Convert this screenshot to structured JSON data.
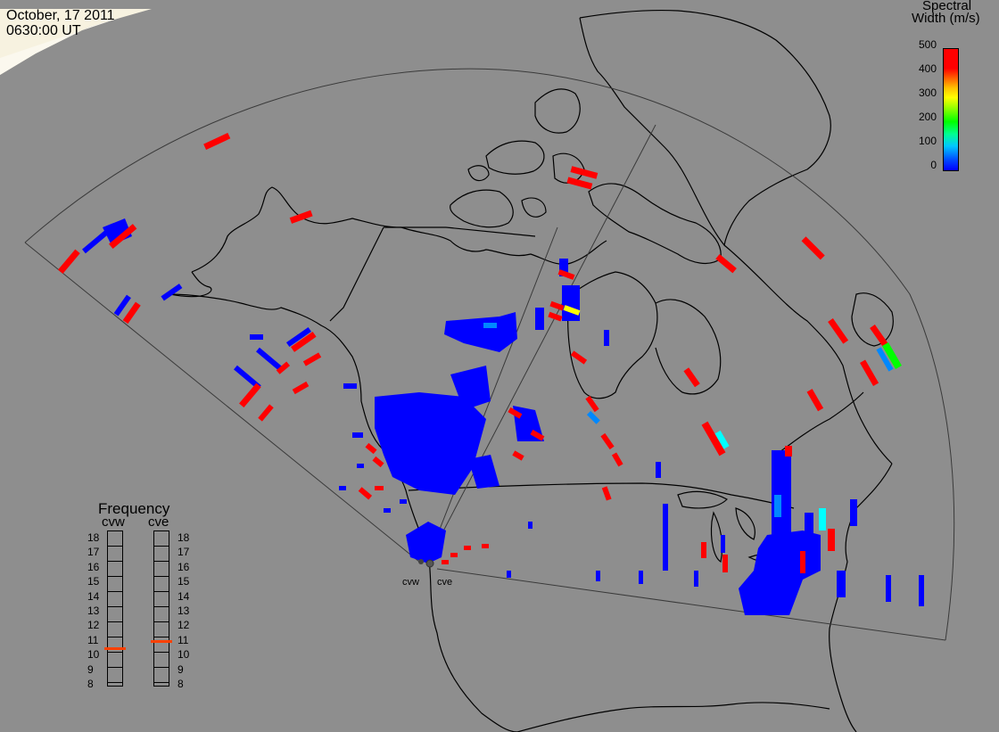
{
  "title": {
    "date": "October, 17 2011",
    "time": "0630:00 UT"
  },
  "colorbar": {
    "label_line1": "Spectral",
    "label_line2": "Width (m/s)",
    "ticks": [
      "500",
      "400",
      "300",
      "200",
      "100",
      "0"
    ],
    "colors": [
      "#0000ff",
      "#00c8ff",
      "#00ff00",
      "#ffff00",
      "#ff6000",
      "#ff0000"
    ]
  },
  "frequency": {
    "title": "Frequency",
    "radars": [
      {
        "name": "cvw",
        "value_mhz": 10.5
      },
      {
        "name": "cve",
        "value_mhz": 11
      }
    ],
    "scale": [
      "18",
      "17",
      "16",
      "15",
      "14",
      "13",
      "12",
      "11",
      "10",
      "9",
      "8"
    ]
  },
  "sites": [
    {
      "name": "cvw"
    },
    {
      "name": "cve"
    }
  ],
  "colors": {
    "background": "#8e8e8e",
    "low": "#0000ff",
    "high": "#ff0000"
  }
}
